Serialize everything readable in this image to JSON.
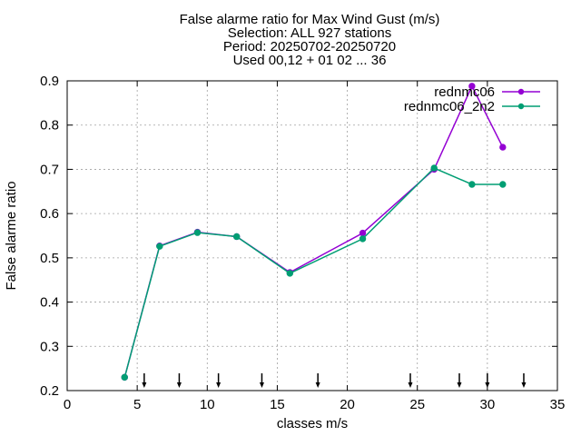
{
  "chart_data": {
    "type": "line",
    "title_lines": [
      "False alarme ratio  for Max Wind Gust (m/s)",
      "Selection: ALL    927 stations",
      "Period: 20250702-20250720",
      "Used 00,12 + 01 02 ... 36"
    ],
    "xlabel": "classes m/s",
    "ylabel": "False alarme ratio",
    "xlim": [
      0,
      35
    ],
    "ylim": [
      0.2,
      0.9
    ],
    "xticks": [
      0,
      5,
      10,
      15,
      20,
      25,
      30,
      35
    ],
    "yticks": [
      0.2,
      0.3,
      0.4,
      0.5,
      0.6,
      0.7,
      0.8,
      0.9
    ],
    "xtick_labels": [
      "0",
      "5",
      "10",
      "15",
      "20",
      "25",
      "30",
      "35"
    ],
    "ytick_labels": [
      "0.2",
      "0.3",
      "0.4",
      "0.5",
      "0.6",
      "0.7",
      "0.8",
      "0.9"
    ],
    "grid": true,
    "legend_position": "top-right",
    "series": [
      {
        "name": "rednmc06",
        "color": "#9400d3",
        "x": [
          4.1,
          6.6,
          9.3,
          12.1,
          15.9,
          21.1,
          26.2,
          28.9,
          31.1
        ],
        "y": [
          0.23,
          0.527,
          0.558,
          0.548,
          0.467,
          0.556,
          0.7,
          0.888,
          0.75
        ]
      },
      {
        "name": "rednmc06_2n2",
        "color": "#009e73",
        "x": [
          4.1,
          6.6,
          9.3,
          12.1,
          15.9,
          21.1,
          26.2,
          28.9,
          31.1
        ],
        "y": [
          0.23,
          0.526,
          0.557,
          0.548,
          0.465,
          0.543,
          0.703,
          0.666,
          0.666
        ]
      }
    ],
    "class_boundaries": [
      5.5,
      8.0,
      10.8,
      13.9,
      17.9,
      24.5,
      28.0,
      30.0,
      32.6
    ]
  }
}
